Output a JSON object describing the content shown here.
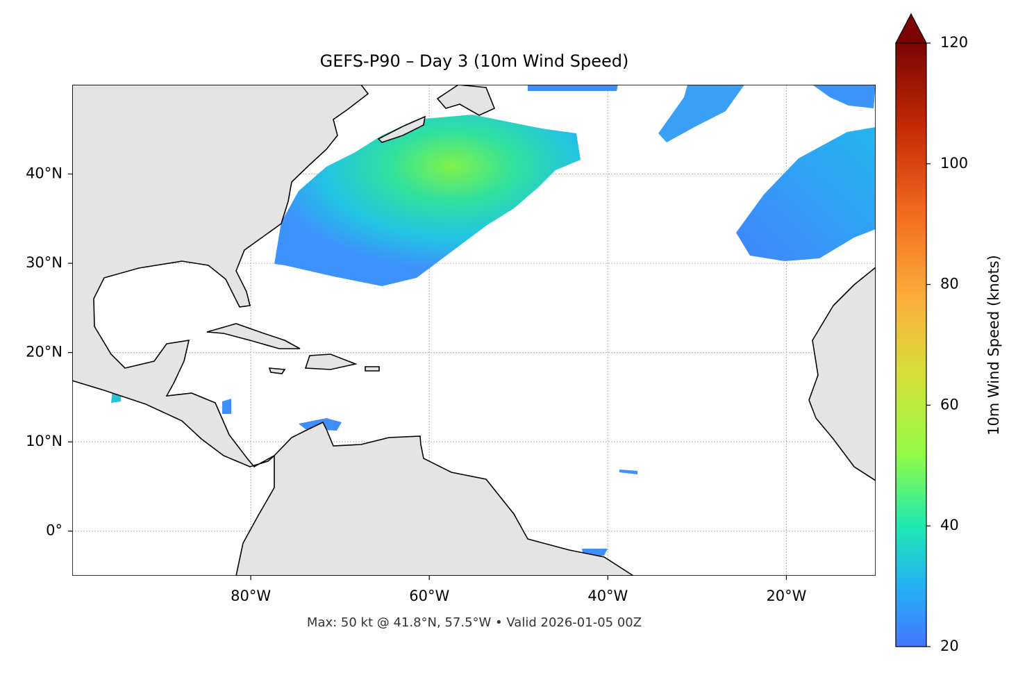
{
  "title": "GEFS-P90 – Day 3 (10m Wind Speed)",
  "footnote": "Max: 50 kt @ 41.8°N, 57.5°W • Valid 2026-01-05 00Z",
  "map": {
    "xlim": [
      -100,
      -10
    ],
    "ylim": [
      -5,
      50
    ],
    "xticks": [
      {
        "value": -80,
        "label": "80°W"
      },
      {
        "value": -60,
        "label": "60°W"
      },
      {
        "value": -40,
        "label": "40°W"
      },
      {
        "value": -20,
        "label": "20°W"
      }
    ],
    "yticks": [
      {
        "value": 0,
        "label": "0°"
      },
      {
        "value": 10,
        "label": "10°N"
      },
      {
        "value": 20,
        "label": "20°N"
      },
      {
        "value": 30,
        "label": "30°N"
      },
      {
        "value": 40,
        "label": "40°N"
      }
    ],
    "grid": true
  },
  "colorbar": {
    "label": "10m Wind Speed (knots)",
    "lim": [
      20,
      120
    ],
    "ticks": [
      20,
      40,
      60,
      80,
      100,
      120
    ]
  }
}
